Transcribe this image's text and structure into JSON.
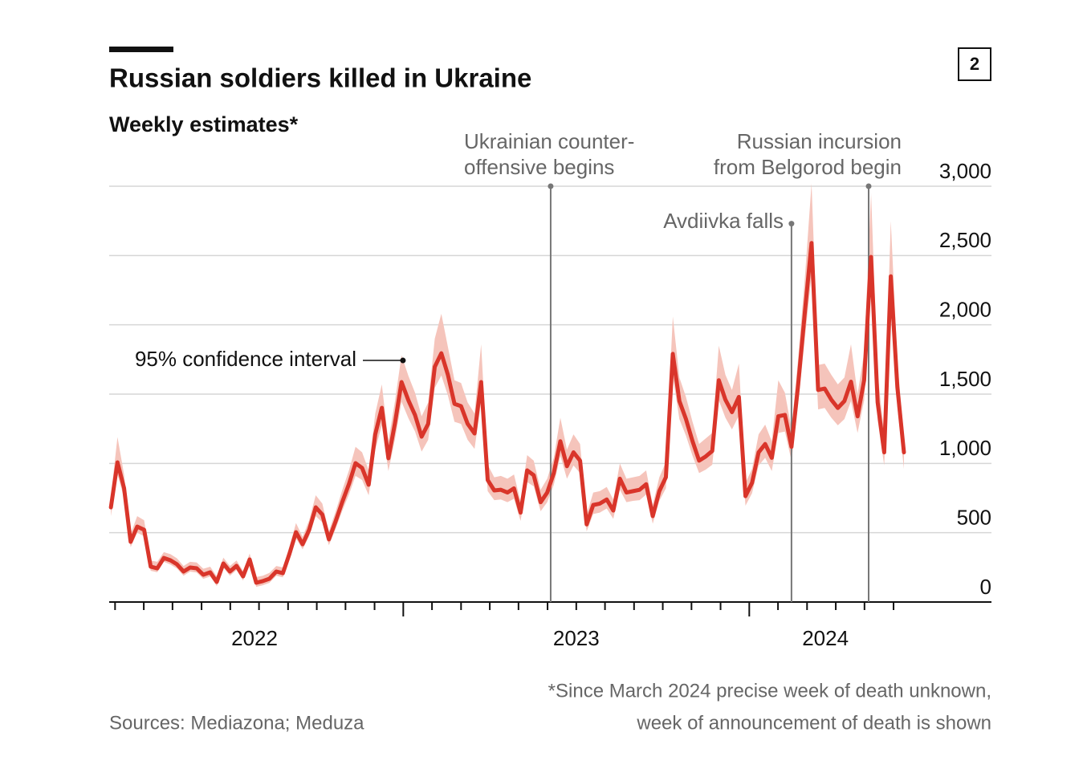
{
  "chart_data": {
    "type": "line",
    "title": "Russian soldiers killed in Ukraine",
    "subtitle": "Weekly estimates*",
    "badge": "2",
    "source": "Sources: Mediazona; Meduza",
    "footnote": [
      "*Since March 2024 precise week of death unknown,",
      "week of announcement of death is shown"
    ],
    "color": "#d9352a",
    "band_color": "#f5c4bb",
    "grid": true,
    "xlim": [
      2022.15,
      2024.7
    ],
    "ylim": [
      0,
      3000
    ],
    "yticks": [
      0,
      500,
      {
        "value": 1000,
        "label": "1,000"
      },
      {
        "value": 1500,
        "label": "1,500"
      },
      {
        "value": 2000,
        "label": "2,000"
      },
      {
        "value": 2500,
        "label": "2,500"
      },
      {
        "value": 3000,
        "label": "3,000"
      }
    ],
    "xticks": [
      {
        "value": 2022.57,
        "label": "2022"
      },
      {
        "value": 2023.5,
        "label": "2023"
      },
      {
        "value": 2024.22,
        "label": "2024"
      }
    ],
    "xminorticks": [
      2022.167,
      2022.25,
      2022.333,
      2022.417,
      2022.5,
      2022.583,
      2022.667,
      2022.75,
      2022.833,
      2022.917,
      2023,
      2023.083,
      2023.167,
      2023.25,
      2023.333,
      2023.417,
      2023.5,
      2023.583,
      2023.667,
      2023.75,
      2023.833,
      2023.917,
      2024,
      2024.083,
      2024.167,
      2024.25,
      2024.333,
      2024.417
    ],
    "x": [
      2022.155,
      2022.174,
      2022.193,
      2022.212,
      2022.231,
      2022.251,
      2022.27,
      2022.289,
      2022.308,
      2022.327,
      2022.346,
      2022.365,
      2022.384,
      2022.403,
      2022.422,
      2022.442,
      2022.461,
      2022.48,
      2022.499,
      2022.518,
      2022.537,
      2022.556,
      2022.575,
      2022.594,
      2022.613,
      2022.633,
      2022.652,
      2022.671,
      2022.69,
      2022.709,
      2022.728,
      2022.747,
      2022.766,
      2022.785,
      2022.804,
      2022.824,
      2022.843,
      2022.862,
      2022.881,
      2022.9,
      2022.919,
      2022.938,
      2022.957,
      2022.976,
      2022.995,
      2023.015,
      2023.034,
      2023.053,
      2023.072,
      2023.091,
      2023.11,
      2023.129,
      2023.148,
      2023.167,
      2023.186,
      2023.206,
      2023.225,
      2023.244,
      2023.263,
      2023.282,
      2023.301,
      2023.32,
      2023.339,
      2023.358,
      2023.377,
      2023.397,
      2023.416,
      2023.435,
      2023.454,
      2023.473,
      2023.492,
      2023.511,
      2023.53,
      2023.549,
      2023.568,
      2023.588,
      2023.607,
      2023.626,
      2023.645,
      2023.664,
      2023.683,
      2023.702,
      2023.721,
      2023.74,
      2023.759,
      2023.779,
      2023.798,
      2023.817,
      2023.836,
      2023.855,
      2023.874,
      2023.893,
      2023.912,
      2023.931,
      2023.95,
      2023.97,
      2023.989,
      2024.008,
      2024.027,
      2024.046,
      2024.065,
      2024.084,
      2024.103,
      2024.122,
      2024.141,
      2024.161,
      2024.18,
      2024.199,
      2024.218,
      2024.237,
      2024.256,
      2024.275,
      2024.294,
      2024.313,
      2024.332,
      2024.352,
      2024.371,
      2024.39,
      2024.409,
      2024.428,
      2024.447
    ],
    "values": [
      683,
      1008,
      822,
      434,
      544,
      521,
      255,
      243,
      318,
      301,
      272,
      220,
      249,
      243,
      197,
      214,
      145,
      278,
      220,
      261,
      185,
      307,
      139,
      151,
      168,
      220,
      208,
      347,
      504,
      417,
      521,
      683,
      631,
      452,
      579,
      724,
      851,
      1002,
      967,
      846,
      1210,
      1401,
      1037,
      1291,
      1587,
      1454,
      1349,
      1193,
      1286,
      1697,
      1795,
      1639,
      1430,
      1413,
      1286,
      1216,
      1587,
      880,
      805,
      810,
      790,
      820,
      645,
      950,
      915,
      720,
      790,
      930,
      1160,
      980,
      1080,
      1020,
      560,
      700,
      710,
      740,
      660,
      890,
      790,
      800,
      810,
      850,
      620,
      800,
      900,
      1790,
      1450,
      1320,
      1160,
      1020,
      1050,
      1090,
      1600,
      1460,
      1370,
      1480,
      764,
      860,
      1080,
      1140,
      1040,
      1340,
      1350,
      1120,
      1560,
      2100,
      2590,
      1530,
      1540,
      1460,
      1400,
      1450,
      1590,
      1340,
      1600,
      2490,
      1440,
      1080,
      2350,
      1550,
      1080
    ],
    "upper": [
      765,
      1190,
      920,
      490,
      620,
      590,
      300,
      290,
      360,
      345,
      315,
      260,
      290,
      285,
      240,
      255,
      185,
      320,
      260,
      300,
      225,
      350,
      180,
      190,
      210,
      260,
      250,
      400,
      570,
      470,
      590,
      770,
      710,
      510,
      650,
      810,
      950,
      1120,
      1080,
      950,
      1360,
      1570,
      1160,
      1450,
      1780,
      1630,
      1510,
      1340,
      1440,
      1900,
      2080,
      1840,
      1600,
      1580,
      1440,
      1360,
      1860,
      990,
      900,
      910,
      890,
      920,
      725,
      1060,
      1020,
      810,
      890,
      1040,
      1330,
      1100,
      1210,
      1140,
      630,
      790,
      800,
      830,
      740,
      1000,
      890,
      900,
      910,
      950,
      700,
      900,
      1010,
      2060,
      1620,
      1480,
      1300,
      1140,
      1180,
      1220,
      1850,
      1640,
      1530,
      1720,
      860,
      960,
      1210,
      1280,
      1160,
      1600,
      1510,
      1250,
      1750,
      2350,
      3020,
      1710,
      1720,
      1640,
      1570,
      1620,
      1860,
      1500,
      1800,
      2950,
      1650,
      1210,
      2750,
      1740,
      1200
    ],
    "lower": [
      620,
      920,
      750,
      395,
      500,
      475,
      225,
      215,
      290,
      270,
      242,
      190,
      219,
      213,
      167,
      184,
      115,
      248,
      190,
      231,
      155,
      277,
      109,
      121,
      138,
      190,
      178,
      315,
      460,
      380,
      475,
      620,
      575,
      410,
      525,
      660,
      775,
      910,
      880,
      770,
      1100,
      1275,
      945,
      1175,
      1445,
      1325,
      1230,
      1085,
      1170,
      1545,
      1635,
      1490,
      1300,
      1285,
      1170,
      1105,
      1445,
      800,
      735,
      740,
      720,
      745,
      585,
      865,
      835,
      655,
      720,
      845,
      1055,
      890,
      985,
      930,
      510,
      635,
      645,
      675,
      600,
      810,
      720,
      730,
      735,
      775,
      565,
      730,
      820,
      1630,
      1320,
      1200,
      1055,
      930,
      955,
      990,
      1455,
      1330,
      1245,
      1345,
      695,
      785,
      985,
      1040,
      945,
      1220,
      1230,
      1020,
      1420,
      1910,
      2360,
      1390,
      1400,
      1330,
      1275,
      1320,
      1450,
      1220,
      1455,
      2270,
      1310,
      985,
      2140,
      1410,
      960
    ],
    "annotations": [
      {
        "lines": [
          "Ukrainian counter-",
          "offensive begins"
        ],
        "x": 2023.426,
        "y": 3000
      },
      {
        "lines": [
          "Avdiivka falls"
        ],
        "x": 2024.122,
        "y": 2730
      },
      {
        "lines": [
          "Russian incursion",
          "from Belgorod begin"
        ],
        "x": 2024.345,
        "y": 3000
      },
      {
        "lines": [
          "95% confidence interval"
        ],
        "x": 2022.999,
        "y": 1743
      }
    ]
  }
}
